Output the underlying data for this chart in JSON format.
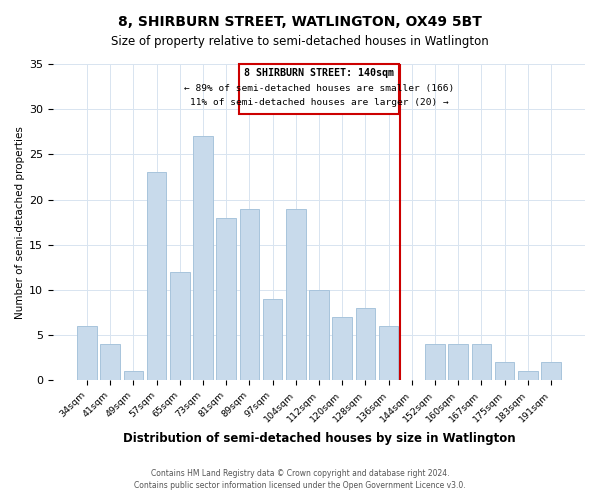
{
  "title": "8, SHIRBURN STREET, WATLINGTON, OX49 5BT",
  "subtitle": "Size of property relative to semi-detached houses in Watlington",
  "xlabel": "Distribution of semi-detached houses by size in Watlington",
  "ylabel": "Number of semi-detached properties",
  "bar_color": "#c8daeb",
  "bar_edge_color": "#a8c4dc",
  "categories": [
    "34sqm",
    "41sqm",
    "49sqm",
    "57sqm",
    "65sqm",
    "73sqm",
    "81sqm",
    "89sqm",
    "97sqm",
    "104sqm",
    "112sqm",
    "120sqm",
    "128sqm",
    "136sqm",
    "144sqm",
    "152sqm",
    "160sqm",
    "167sqm",
    "175sqm",
    "183sqm",
    "191sqm"
  ],
  "values": [
    6,
    4,
    1,
    23,
    12,
    27,
    18,
    19,
    9,
    19,
    10,
    7,
    8,
    6,
    0,
    4,
    4,
    4,
    2,
    1,
    2
  ],
  "ylim": [
    0,
    35
  ],
  "yticks": [
    0,
    5,
    10,
    15,
    20,
    25,
    30,
    35
  ],
  "marker_color": "#cc0000",
  "annotation_label": "8 SHIRBURN STREET: 140sqm",
  "annotation_smaller": "← 89% of semi-detached houses are smaller (166)",
  "annotation_larger": "11% of semi-detached houses are larger (20) →",
  "footer_line1": "Contains HM Land Registry data © Crown copyright and database right 2024.",
  "footer_line2": "Contains public sector information licensed under the Open Government Licence v3.0.",
  "background_color": "#ffffff",
  "grid_color": "#d8e4f0"
}
